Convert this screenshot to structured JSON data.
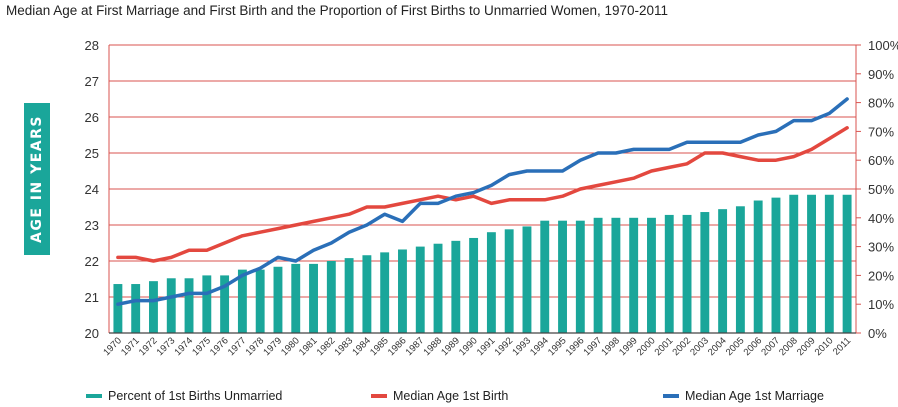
{
  "chart_data": {
    "type": "bar",
    "title": "Median Age at First Marriage and First Birth and the Proportion of First Births to Unmarried Women, 1970-2011",
    "ylabel": "AGE IN YEARS",
    "xlabel": "",
    "ylim": [
      20,
      28
    ],
    "y2lim": [
      0,
      100
    ],
    "yticks": [
      "20",
      "21",
      "22",
      "23",
      "24",
      "25",
      "26",
      "27",
      "28"
    ],
    "y2ticks": [
      "0%",
      "10%",
      "20%",
      "30%",
      "40%",
      "50%",
      "60%",
      "70%",
      "80%",
      "90%",
      "100%"
    ],
    "grid": true,
    "legend_position": "bottom",
    "categories": [
      "1970",
      "1971",
      "1972",
      "1973",
      "1974",
      "1975",
      "1976",
      "1977",
      "1978",
      "1979",
      "1980",
      "1981",
      "1982",
      "1983",
      "1984",
      "1985",
      "1986",
      "1987",
      "1988",
      "1989",
      "1990",
      "1991",
      "1992",
      "1993",
      "1994",
      "1995",
      "1996",
      "1997",
      "1998",
      "1999",
      "2000",
      "2001",
      "2002",
      "2003",
      "2004",
      "2005",
      "2006",
      "2007",
      "2008",
      "2009",
      "2010",
      "2011"
    ],
    "series": [
      {
        "name": "Percent of 1st Births Unmarried",
        "type": "bar",
        "axis": "right",
        "color": "#1aa69a",
        "values": [
          17,
          17,
          18,
          19,
          19,
          20,
          20,
          22,
          22,
          23,
          24,
          24,
          25,
          26,
          27,
          28,
          29,
          30,
          31,
          32,
          33,
          35,
          36,
          37,
          39,
          39,
          39,
          40,
          40,
          40,
          40,
          41,
          41,
          42,
          43,
          44,
          46,
          47,
          48,
          48,
          48,
          48
        ]
      },
      {
        "name": "Median Age 1st Birth",
        "type": "line",
        "axis": "left",
        "color": "#e3483f",
        "values": [
          22.1,
          22.1,
          22.0,
          22.1,
          22.3,
          22.3,
          22.5,
          22.7,
          22.8,
          22.9,
          23.0,
          23.1,
          23.2,
          23.3,
          23.5,
          23.5,
          23.6,
          23.7,
          23.8,
          23.7,
          23.8,
          23.6,
          23.7,
          23.7,
          23.7,
          23.8,
          24.0,
          24.1,
          24.2,
          24.3,
          24.5,
          24.6,
          24.7,
          25.0,
          25.0,
          24.9,
          24.8,
          24.8,
          24.9,
          25.1,
          25.4,
          25.7
        ]
      },
      {
        "name": "Median Age 1st Marriage",
        "type": "line",
        "axis": "left",
        "color": "#2a6fb8",
        "values": [
          20.8,
          20.9,
          20.9,
          21.0,
          21.1,
          21.1,
          21.3,
          21.6,
          21.8,
          22.1,
          22.0,
          22.3,
          22.5,
          22.8,
          23.0,
          23.3,
          23.1,
          23.6,
          23.6,
          23.8,
          23.9,
          24.1,
          24.4,
          24.5,
          24.5,
          24.5,
          24.8,
          25.0,
          25.0,
          25.1,
          25.1,
          25.1,
          25.3,
          25.3,
          25.3,
          25.3,
          25.5,
          25.6,
          25.9,
          25.9,
          26.1,
          26.5
        ]
      }
    ]
  }
}
